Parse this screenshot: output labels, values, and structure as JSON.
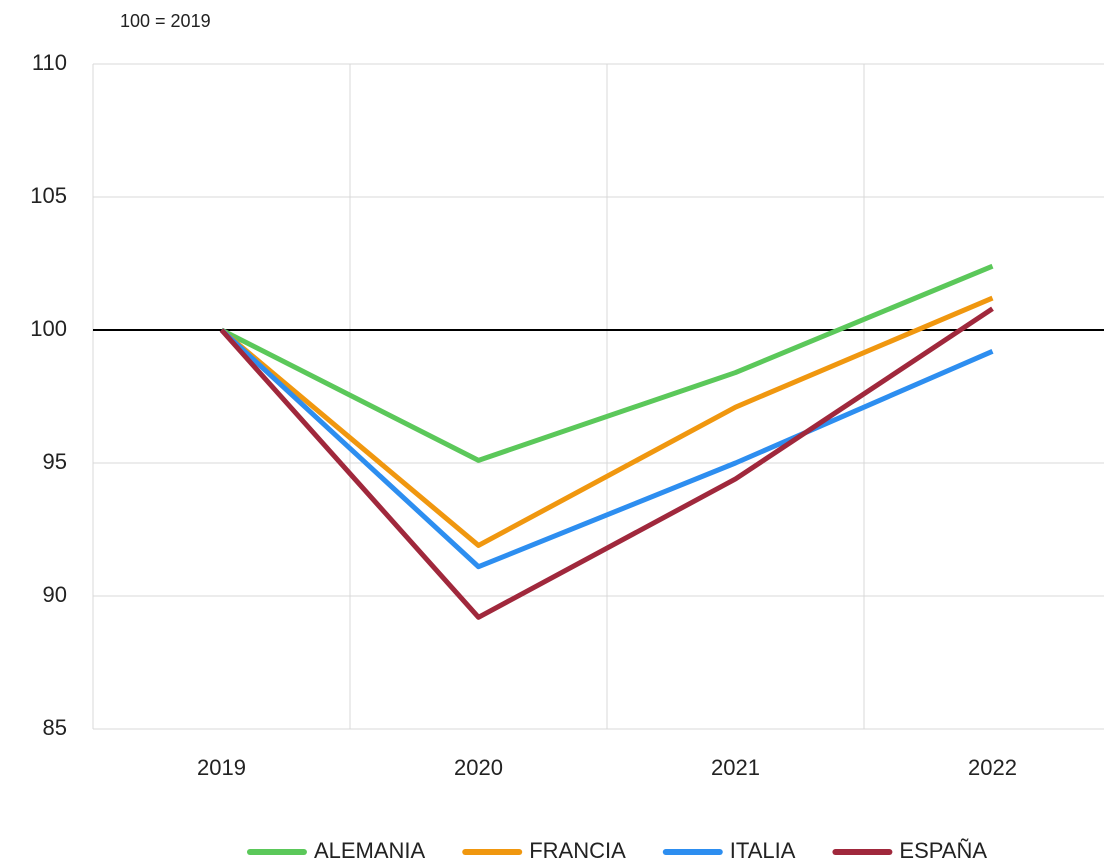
{
  "chart_data": {
    "type": "line",
    "subtitle": "100 = 2019",
    "categories": [
      "2019",
      "2020",
      "2021",
      "2022"
    ],
    "series": [
      {
        "name": "ALEMANIA",
        "color": "#5bc85a",
        "values": [
          100,
          95.1,
          98.4,
          102.4
        ]
      },
      {
        "name": "FRANCIA",
        "color": "#f0970f",
        "values": [
          100,
          91.9,
          97.1,
          101.2
        ]
      },
      {
        "name": "ITALIA",
        "color": "#2d8ef0",
        "values": [
          100,
          91.1,
          95.0,
          99.2
        ]
      },
      {
        "name": "ESPAÑA",
        "color": "#a0283c",
        "values": [
          100,
          89.2,
          94.4,
          100.8
        ]
      }
    ],
    "ylim": [
      85,
      110
    ],
    "yticks": [
      85,
      90,
      95,
      100,
      105,
      110
    ],
    "baseline": 100,
    "grid": true,
    "legend": "bottom"
  }
}
